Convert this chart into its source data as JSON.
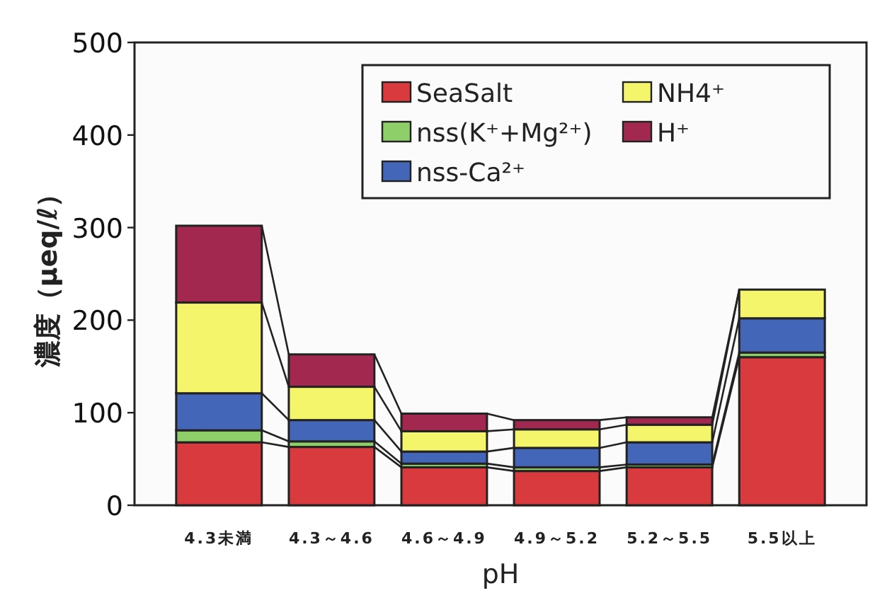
{
  "chart_data": {
    "type": "bar",
    "stacked": true,
    "xlabel": "pH",
    "ylabel": "濃度（μeq/ℓ）",
    "categories": [
      "4.3未満",
      "4.3～4.6",
      "4.6～4.9",
      "4.9～5.2",
      "5.2～5.5",
      "5.5以上"
    ],
    "series": [
      {
        "name": "SeaSalt",
        "color": "#d93a3e",
        "values": [
          68,
          63,
          41,
          37,
          41,
          160
        ]
      },
      {
        "name": "nss(K⁺+Mg²⁺)",
        "color": "#8fcf6a",
        "values": [
          13,
          6,
          4,
          4,
          3,
          5
        ]
      },
      {
        "name": "nss-Ca²⁺",
        "color": "#4466b8",
        "values": [
          40,
          23,
          13,
          21,
          24,
          37
        ]
      },
      {
        "name": "NH4⁺",
        "color": "#f4f56a",
        "values": [
          98,
          36,
          22,
          20,
          19,
          31
        ]
      },
      {
        "name": "H⁺",
        "color": "#a3284f",
        "values": [
          83,
          35,
          19,
          10,
          8,
          0
        ]
      }
    ],
    "ylim": [
      0,
      500
    ],
    "yticks": [
      0,
      100,
      200,
      300,
      400,
      500
    ],
    "legend": "top right"
  }
}
